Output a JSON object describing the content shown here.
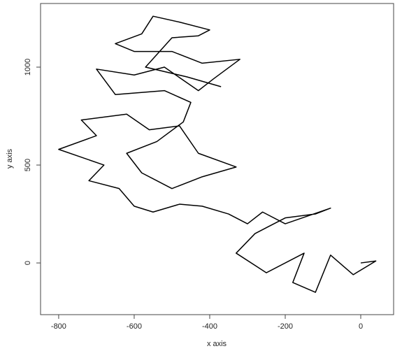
{
  "chart_data": {
    "type": "line",
    "x_label": "x axis",
    "y_label": "y axis",
    "x": [
      0,
      40,
      -20,
      -80,
      -120,
      -180,
      -150,
      -250,
      -330,
      -280,
      -200,
      -120,
      -80,
      -200,
      -260,
      -300,
      -350,
      -420,
      -480,
      -550,
      -600,
      -640,
      -720,
      -680,
      -800,
      -700,
      -740,
      -620,
      -560,
      -480,
      -430,
      -330,
      -420,
      -500,
      -580,
      -620,
      -540,
      -470,
      -450,
      -520,
      -650,
      -700,
      -600,
      -520,
      -430,
      -390,
      -320,
      -420,
      -500,
      -600,
      -650,
      -580,
      -550,
      -480,
      -400,
      -430,
      -500,
      -570,
      -460,
      -370
    ],
    "values": [
      0,
      10,
      -60,
      40,
      -150,
      -100,
      50,
      -50,
      50,
      150,
      230,
      250,
      280,
      200,
      260,
      200,
      250,
      290,
      300,
      260,
      290,
      380,
      420,
      500,
      580,
      650,
      730,
      760,
      680,
      700,
      560,
      490,
      440,
      380,
      460,
      560,
      620,
      720,
      820,
      880,
      860,
      990,
      960,
      1000,
      880,
      940,
      1040,
      1020,
      1080,
      1080,
      1120,
      1170,
      1260,
      1230,
      1190,
      1160,
      1150,
      1000,
      950,
      900
    ],
    "color": "#000000",
    "xlim": [
      -848,
      87
    ],
    "xticks": [
      -800,
      -600,
      -400,
      -200,
      0
    ],
    "ylim": [
      -264,
      1325
    ],
    "yticks": [
      0,
      500,
      1000
    ]
  }
}
